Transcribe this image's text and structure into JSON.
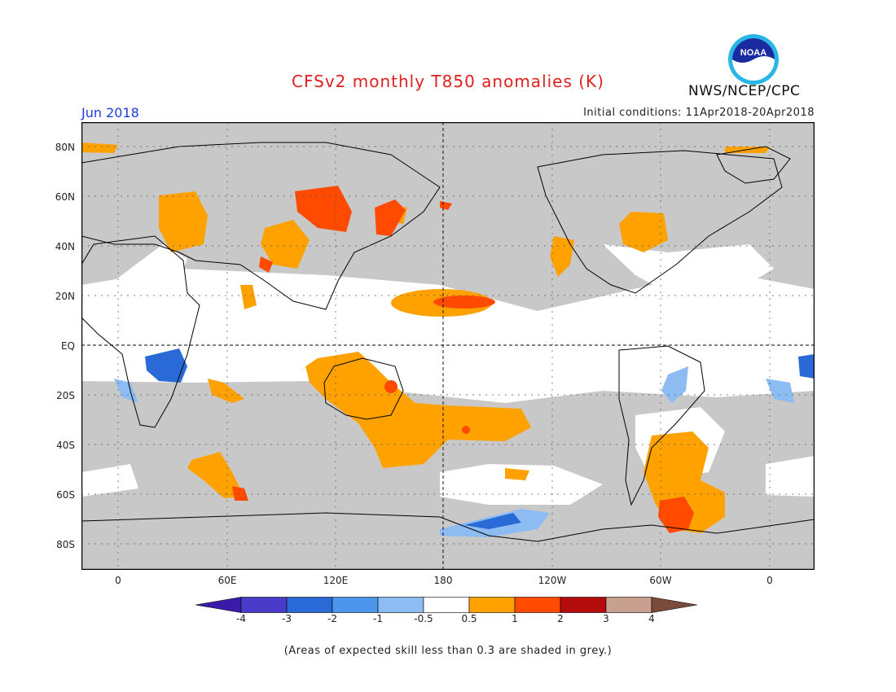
{
  "title": "CFSv2 monthly T850 anomalies (K)",
  "month": "Jun 2018",
  "initial_conditions": "Initial conditions: 11Apr2018-20Apr2018",
  "org": "NWS/NCEP/CPC",
  "logo_text": "NOAA",
  "note": "(Areas of expected skill less than 0.3 are shaded in grey.)",
  "lat_ticks": [
    "80N",
    "60N",
    "40N",
    "20N",
    "EQ",
    "20S",
    "40S",
    "60S",
    "80S"
  ],
  "lon_ticks": [
    "0",
    "60E",
    "120E",
    "180",
    "120W",
    "60W",
    "0"
  ],
  "colorbar": {
    "labels": [
      "-4",
      "-3",
      "-2",
      "-1",
      "-0.5",
      "0.5",
      "1",
      "2",
      "3",
      "4"
    ],
    "colors": [
      "#3a1aa8",
      "#4a3cc8",
      "#2a6ad6",
      "#4c96ec",
      "#8cbcf2",
      "#ffffff",
      "#ffa200",
      "#ff4a00",
      "#b40c0c",
      "#c8a090",
      "#7a4a3a"
    ]
  },
  "colors": {
    "grey_skill": "#c8c8c8",
    "land_outline": "#000000"
  }
}
